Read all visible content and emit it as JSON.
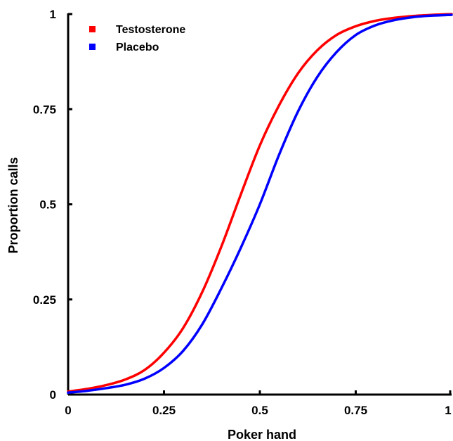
{
  "chart_data": {
    "type": "line",
    "xlabel": "Poker hand",
    "ylabel": "Proportion calls",
    "xlim": [
      0,
      1
    ],
    "ylim": [
      0,
      1
    ],
    "x_ticks": [
      "0",
      "0.25",
      "0.5",
      "0.75",
      "1"
    ],
    "y_ticks": [
      "0",
      "0.25",
      "0.5",
      "0.75",
      "1"
    ],
    "grid": false,
    "legend_position": "top-left",
    "series": [
      {
        "name": "Testosterone",
        "color": "#ff0000",
        "x": [
          0,
          0.05,
          0.1,
          0.15,
          0.2,
          0.25,
          0.3,
          0.35,
          0.4,
          0.45,
          0.5,
          0.55,
          0.6,
          0.65,
          0.7,
          0.75,
          0.8,
          0.85,
          0.9,
          0.95,
          1
        ],
        "y": [
          0.008,
          0.015,
          0.025,
          0.04,
          0.065,
          0.11,
          0.175,
          0.27,
          0.39,
          0.525,
          0.655,
          0.76,
          0.845,
          0.905,
          0.945,
          0.968,
          0.982,
          0.99,
          0.995,
          0.998,
          1.0
        ]
      },
      {
        "name": "Placebo",
        "color": "#0000ff",
        "x": [
          0,
          0.05,
          0.1,
          0.15,
          0.2,
          0.25,
          0.3,
          0.35,
          0.4,
          0.45,
          0.5,
          0.55,
          0.6,
          0.65,
          0.7,
          0.75,
          0.8,
          0.85,
          0.9,
          0.95,
          1
        ],
        "y": [
          0.005,
          0.01,
          0.017,
          0.026,
          0.042,
          0.07,
          0.115,
          0.185,
          0.28,
          0.385,
          0.5,
          0.63,
          0.745,
          0.835,
          0.9,
          0.945,
          0.97,
          0.984,
          0.992,
          0.996,
          0.998
        ]
      }
    ]
  }
}
